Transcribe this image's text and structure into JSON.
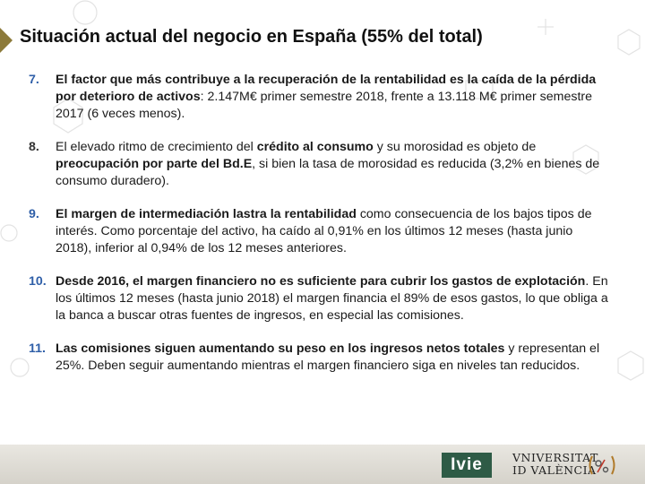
{
  "slide": {
    "title": "Situación actual del negocio en España (55% del total)"
  },
  "items": [
    {
      "number": "7.",
      "bold1": "El factor que más contribuye a la recuperación de la rentabilidad es la caída de la pérdida por deterioro de activos",
      "text1": ": 2.147M€ primer semestre 2018, frente a 13.118 M€ primer semestre 2017 (6 veces menos)."
    },
    {
      "number": "8.",
      "text0": "El elevado ritmo de crecimiento del ",
      "bold1": "crédito al consumo",
      "text1": " y su morosidad es objeto de ",
      "bold2": "preocupación por parte del Bd.E",
      "text2": ", si bien la tasa de morosidad es reducida (3,2% en bienes de consumo duradero)."
    },
    {
      "number": "9.",
      "bold1": "El margen de intermediación lastra la rentabilidad",
      "text1": " como consecuencia de los bajos tipos de interés. Como porcentaje del activo, ha caído al 0,91% en los últimos 12 meses (hasta junio 2018), inferior al 0,94% de los 12 meses anteriores."
    },
    {
      "number": "10.",
      "bold1": "Desde 2016, el margen financiero no es suficiente para cubrir los gastos de explotación",
      "text1": ". En los últimos 12 meses (hasta junio 2018) el margen financia el 89% de esos gastos, lo que obliga a la banca a buscar otras fuentes de ingresos, en especial las comisiones."
    },
    {
      "number": "11.",
      "bold1": "Las comisiones siguen aumentando su peso en los ingresos netos totales",
      "text1": " y representan el 25%. Deben seguir aumentando mientras el margen financiero siga en niveles tan reducidos."
    }
  ],
  "footer": {
    "ivie": "Ivie",
    "uv_line1": "VNIVERSITAT",
    "uv_line2": "ID VALÈNCIA"
  },
  "colors": {
    "accent_marker": "#8c7a3a",
    "number_blue": "#2f5fa8",
    "ivie_green": "#2e5b46"
  }
}
